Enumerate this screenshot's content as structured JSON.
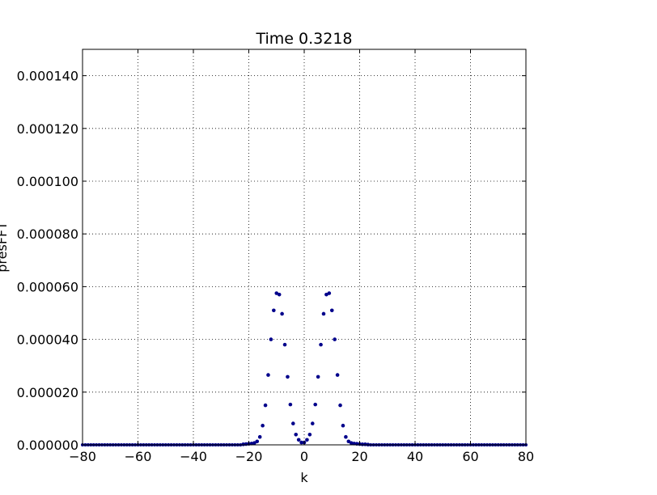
{
  "chart_data": {
    "type": "scatter",
    "title": "Time 0.3218",
    "xlabel": "k",
    "ylabel": "presFFT",
    "xlim": [
      -80,
      80
    ],
    "ylim": [
      0,
      0.00015
    ],
    "xticks": [
      -80,
      -60,
      -40,
      -20,
      0,
      20,
      40,
      60,
      80
    ],
    "xtick_labels": [
      "−80",
      "−60",
      "−40",
      "−20",
      "0",
      "20",
      "40",
      "60",
      "80"
    ],
    "yticks": [
      0,
      2e-05,
      4e-05,
      6e-05,
      8e-05,
      0.0001,
      0.00012,
      0.00014
    ],
    "ytick_labels": [
      "0.000000",
      "0.000020",
      "0.000040",
      "0.000060",
      "0.000080",
      "0.000100",
      "0.000120",
      "0.000140"
    ],
    "grid": true,
    "marker_color": "#00008b",
    "series": [
      {
        "name": "",
        "x": [
          -22,
          -21,
          -20,
          -19,
          -18,
          -17,
          -16,
          -15,
          -14,
          -13,
          -12,
          -11,
          -10,
          -9,
          -8,
          -7,
          -6,
          -5,
          -4,
          -3,
          -2,
          -1,
          0,
          1,
          2,
          3,
          4,
          5,
          6,
          7,
          8,
          9,
          10,
          11,
          12,
          13,
          14,
          15,
          16,
          17,
          18,
          19,
          20,
          21,
          22,
          23
        ],
        "y": [
          2e-07,
          3e-07,
          4e-07,
          5e-07,
          7e-07,
          1.3e-06,
          3e-06,
          7.3e-06,
          1.5e-05,
          2.65e-05,
          4e-05,
          5.1e-05,
          5.75e-05,
          5.7e-05,
          4.97e-05,
          3.8e-05,
          2.58e-05,
          1.53e-05,
          8.1e-06,
          3.9e-06,
          1.9e-06,
          9e-07,
          9e-07,
          1.9e-06,
          3.9e-06,
          8.1e-06,
          1.53e-05,
          2.58e-05,
          3.8e-05,
          4.97e-05,
          5.7e-05,
          5.75e-05,
          5.1e-05,
          4e-05,
          2.65e-05,
          1.5e-05,
          7.3e-06,
          3e-06,
          1.3e-06,
          7e-07,
          5e-07,
          4e-07,
          3e-07,
          2e-07,
          2e-07,
          1e-07
        ]
      }
    ],
    "baseline_range": [
      -80,
      80
    ]
  }
}
